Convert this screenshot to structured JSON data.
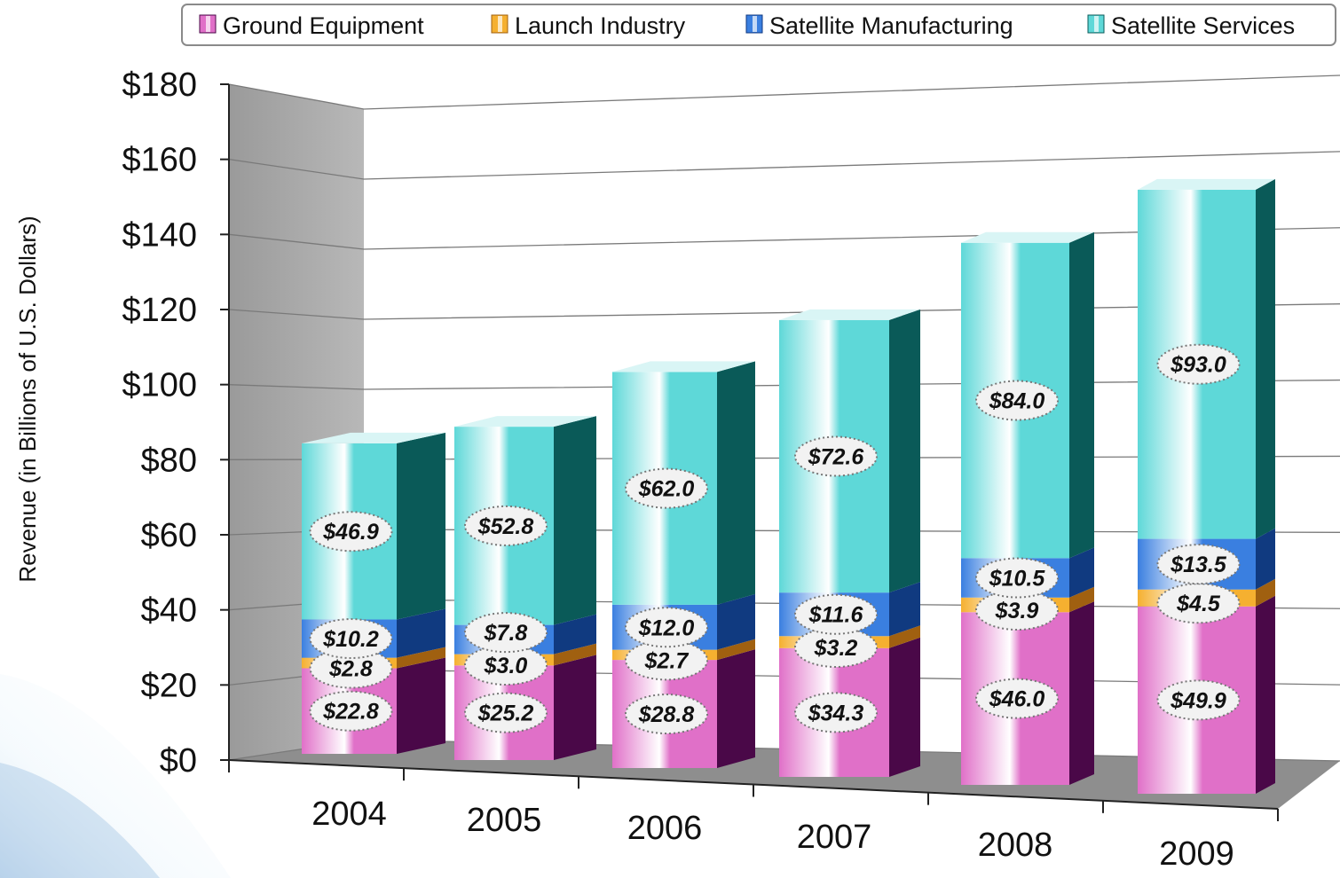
{
  "chart_data": {
    "type": "bar",
    "stacked": true,
    "three_d": true,
    "categories": [
      "2004",
      "2005",
      "2006",
      "2007",
      "2008",
      "2009"
    ],
    "series": [
      {
        "name": "Ground Equipment",
        "values": [
          22.8,
          25.2,
          28.8,
          34.3,
          46.0,
          49.9
        ],
        "labels": [
          "$22.8",
          "$25.2",
          "$28.8",
          "$34.3",
          "$46.0",
          "$49.9"
        ],
        "color": "#e070c8",
        "dark": "#4a0848"
      },
      {
        "name": "Launch Industry",
        "values": [
          2.8,
          3.0,
          2.7,
          3.2,
          3.9,
          4.5
        ],
        "labels": [
          "$2.8",
          "$3.0",
          "$2.7",
          "$3.2",
          "$3.9",
          "$4.5"
        ],
        "color": "#f5b030",
        "dark": "#a06010"
      },
      {
        "name": "Satellite Manufacturing",
        "values": [
          10.2,
          7.8,
          12.0,
          11.6,
          10.5,
          13.5
        ],
        "labels": [
          "$10.2",
          "$7.8",
          "$12.0",
          "$11.6",
          "$10.5",
          "$13.5"
        ],
        "color": "#3a7fe0",
        "dark": "#103a80"
      },
      {
        "name": "Satellite Services",
        "values": [
          46.9,
          52.8,
          62.0,
          72.6,
          84.0,
          93.0
        ],
        "labels": [
          "$46.9",
          "$52.8",
          "$62.0",
          "$72.6",
          "$84.0",
          "$93.0"
        ],
        "color": "#5ed8d8",
        "dark": "#0a5a58"
      }
    ],
    "ylabel": "Revenue (in Billions of U.S. Dollars)",
    "xlabel": "",
    "ylim": [
      0,
      180
    ],
    "y_ticks": [
      0,
      20,
      40,
      60,
      80,
      100,
      120,
      140,
      160,
      180
    ],
    "y_tick_labels": [
      "$0",
      "$20",
      "$40",
      "$60",
      "$80",
      "$100",
      "$120",
      "$140",
      "$160",
      "$180"
    ],
    "grid": true,
    "legend_position": "top"
  }
}
